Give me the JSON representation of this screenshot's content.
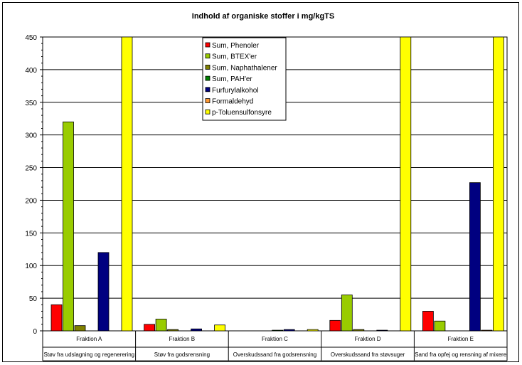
{
  "chart_data": {
    "type": "bar",
    "title": "Indhold af organiske stoffer i mg/kgTS",
    "xlabel": "",
    "ylabel": "",
    "ylim": [
      0,
      450
    ],
    "yticks": [
      0,
      50,
      100,
      150,
      200,
      250,
      300,
      350,
      400,
      450
    ],
    "grid": true,
    "legend_position": "top-center",
    "categories": [
      {
        "name": "Fraktion A",
        "description": "Støv fra udslagning og regenerering"
      },
      {
        "name": "Fraktion B",
        "description": "Støv fra godsrensning"
      },
      {
        "name": "Fraktion C",
        "description": "Overskudssand fra godsrensning"
      },
      {
        "name": "Fraktion D",
        "description": "Overskudssand fra støvsuger"
      },
      {
        "name": "Fraktion E",
        "description": "Sand fra opfej og rensning af mixere"
      }
    ],
    "series": [
      {
        "name": "Sum, Phenoler",
        "color": "#ff0000",
        "values": [
          40,
          10,
          0,
          16,
          30
        ]
      },
      {
        "name": "Sum, BTEX'er",
        "color": "#99cc00",
        "values": [
          320,
          18,
          0,
          55,
          15
        ]
      },
      {
        "name": "Sum, Naphathalener",
        "color": "#808000",
        "values": [
          8,
          2,
          0,
          2,
          0
        ]
      },
      {
        "name": "Sum, PAH'er",
        "color": "#008000",
        "values": [
          0,
          0,
          1,
          0,
          0
        ]
      },
      {
        "name": "Furfurylalkohol",
        "color": "#000080",
        "values": [
          120,
          3,
          2,
          1,
          227
        ]
      },
      {
        "name": "Formaldehyd",
        "color": "#ff9933",
        "values": [
          0,
          0,
          0,
          0,
          1
        ]
      },
      {
        "name": "p-Toluensulfonsyre",
        "color": "#ffff00",
        "values": [
          450,
          9,
          2,
          450,
          450
        ]
      }
    ]
  }
}
